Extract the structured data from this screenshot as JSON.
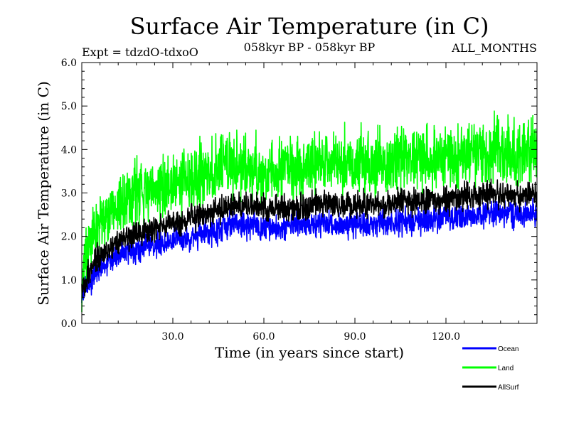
{
  "header": {
    "title": "Surface Air Temperature (in C)",
    "experiment": "Expt = tdzdO-tdxoO",
    "period": "058kyr BP - 058kyr BP",
    "months": "ALL_MONTHS"
  },
  "chart_data": {
    "type": "line",
    "title": "Surface Air Temperature (in C)",
    "xlabel": "Time (in years since start)",
    "ylabel": "Surface Air Temperature (in C)",
    "xlim": [
      0,
      150
    ],
    "ylim": [
      0.0,
      6.0
    ],
    "x_ticks": [
      30,
      60,
      90,
      120
    ],
    "x_tick_labels": [
      "30.0",
      "60.0",
      "90.0",
      "120.0"
    ],
    "y_ticks": [
      0,
      1,
      2,
      3,
      4,
      5,
      6
    ],
    "y_tick_labels": [
      "0.0",
      "1.0",
      "2.0",
      "3.0",
      "4.0",
      "5.0",
      "6.0"
    ],
    "grid": false,
    "legend_position": "bottom-right",
    "x": [
      0,
      2,
      5,
      10,
      15,
      20,
      25,
      30,
      35,
      40,
      45,
      50,
      55,
      60,
      65,
      70,
      75,
      80,
      85,
      90,
      95,
      100,
      105,
      110,
      115,
      120,
      125,
      130,
      135,
      140,
      145,
      150
    ],
    "series": [
      {
        "name": "Ocean",
        "color": "#0000ff",
        "amplitude": 0.15,
        "values": [
          0.7,
          0.9,
          1.2,
          1.5,
          1.65,
          1.75,
          1.85,
          1.9,
          1.95,
          2.05,
          2.15,
          2.3,
          2.25,
          2.2,
          2.2,
          2.25,
          2.25,
          2.3,
          2.25,
          2.3,
          2.25,
          2.3,
          2.35,
          2.35,
          2.4,
          2.45,
          2.45,
          2.5,
          2.55,
          2.5,
          2.5,
          2.55
        ]
      },
      {
        "name": "Land",
        "color": "#00ff00",
        "amplitude": 0.35,
        "values": [
          1.1,
          1.6,
          2.3,
          2.7,
          2.9,
          3.0,
          3.1,
          3.2,
          3.3,
          3.45,
          3.55,
          3.7,
          3.6,
          3.5,
          3.55,
          3.55,
          3.6,
          3.7,
          3.65,
          3.7,
          3.65,
          3.7,
          3.75,
          3.8,
          3.8,
          3.85,
          3.85,
          3.95,
          4.0,
          3.9,
          3.9,
          4.0
        ]
      },
      {
        "name": "AllSurf",
        "color": "#000000",
        "amplitude": 0.15,
        "values": [
          0.8,
          1.1,
          1.5,
          1.8,
          2.0,
          2.1,
          2.2,
          2.3,
          2.4,
          2.5,
          2.6,
          2.75,
          2.7,
          2.65,
          2.65,
          2.65,
          2.7,
          2.75,
          2.7,
          2.75,
          2.7,
          2.75,
          2.8,
          2.8,
          2.85,
          2.85,
          2.9,
          2.95,
          3.0,
          2.95,
          2.95,
          3.0
        ]
      }
    ]
  }
}
